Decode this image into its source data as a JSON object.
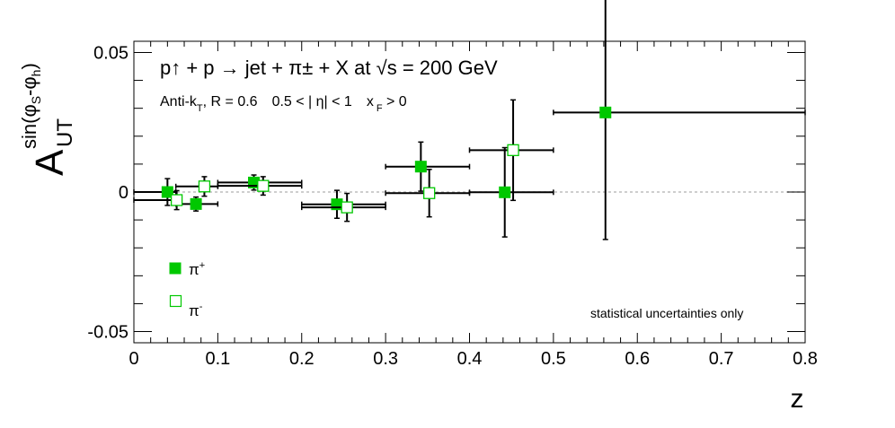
{
  "chart_data": {
    "type": "scatter",
    "title": "p↑ + p → jet + π± + X at √s = 200 GeV",
    "subtitle": {
      "algo": "Anti-k",
      "algo_sub": "T",
      "radius": ", R = 0.6",
      "eta": "0.5 < | η| < 1",
      "xf_base": "x",
      "xf_sub": "F",
      "xf_rest": " > 0"
    },
    "xlabel": "z",
    "ylabel": {
      "base": "A",
      "sub": "UT",
      "sup_main": "sin(φ",
      "sup_s": "S",
      "sup_mid": "-φ",
      "sup_h": "h",
      "sup_end": ")"
    },
    "xlim": [
      0,
      0.8
    ],
    "ylim": [
      -0.054,
      0.054
    ],
    "x_ticks": [
      {
        "v": 0,
        "label": "0"
      },
      {
        "v": 0.1,
        "label": "0.1"
      },
      {
        "v": 0.2,
        "label": "0.2"
      },
      {
        "v": 0.3,
        "label": "0.3"
      },
      {
        "v": 0.4,
        "label": "0.4"
      },
      {
        "v": 0.5,
        "label": "0.5"
      },
      {
        "v": 0.6,
        "label": "0.6"
      },
      {
        "v": 0.7,
        "label": "0.7"
      },
      {
        "v": 0.8,
        "label": "0.8"
      }
    ],
    "y_ticks": [
      {
        "v": -0.05,
        "label": "-0.05"
      },
      {
        "v": 0,
        "label": "0"
      },
      {
        "v": 0.05,
        "label": "0.05"
      }
    ],
    "series": [
      {
        "name": "π+",
        "legend_base": "π",
        "legend_sup": "+",
        "marker": "filled-square",
        "color": "#00c800",
        "points": [
          {
            "x": 0.04,
            "y": 0.0,
            "xlo": 0.0,
            "xhi": 0.05,
            "yerr": 0.0048
          },
          {
            "x": 0.074,
            "y": -0.0043,
            "xlo": 0.05,
            "xhi": 0.1,
            "yerr": 0.0025
          },
          {
            "x": 0.143,
            "y": 0.0034,
            "xlo": 0.1,
            "xhi": 0.2,
            "yerr": 0.0027
          },
          {
            "x": 0.242,
            "y": -0.0044,
            "xlo": 0.2,
            "xhi": 0.3,
            "yerr": 0.005
          },
          {
            "x": 0.342,
            "y": 0.0091,
            "xlo": 0.3,
            "xhi": 0.4,
            "yerr": 0.0088
          },
          {
            "x": 0.442,
            "y": -0.0001,
            "xlo": 0.4,
            "xhi": 0.5,
            "yerr": 0.016
          },
          {
            "x": 0.562,
            "y": 0.0285,
            "xlo": 0.5,
            "xhi": 0.8,
            "yerr": 0.0455
          }
        ]
      },
      {
        "name": "π-",
        "legend_base": "π",
        "legend_sup": "-",
        "marker": "open-square",
        "color": "#00c800",
        "points": [
          {
            "x": 0.051,
            "y": -0.0029,
            "xlo": 0.0,
            "xhi": 0.05,
            "yerr": 0.0034
          },
          {
            "x": 0.084,
            "y": 0.002,
            "xlo": 0.05,
            "xhi": 0.1,
            "yerr": 0.0035
          },
          {
            "x": 0.154,
            "y": 0.0022,
            "xlo": 0.1,
            "xhi": 0.2,
            "yerr": 0.0033
          },
          {
            "x": 0.254,
            "y": -0.0055,
            "xlo": 0.2,
            "xhi": 0.3,
            "yerr": 0.005
          },
          {
            "x": 0.352,
            "y": -0.0004,
            "xlo": 0.3,
            "xhi": 0.4,
            "yerr": 0.0085
          },
          {
            "x": 0.452,
            "y": 0.015,
            "xlo": 0.4,
            "xhi": 0.5,
            "yerr": 0.018
          }
        ]
      }
    ],
    "zero_line": {
      "style": "dotted",
      "color": "#bdbdbd"
    },
    "annotation": "statistical uncertainties only",
    "annotation_color": "#dd0000",
    "legend_position": "bottom-left",
    "grid": false
  }
}
